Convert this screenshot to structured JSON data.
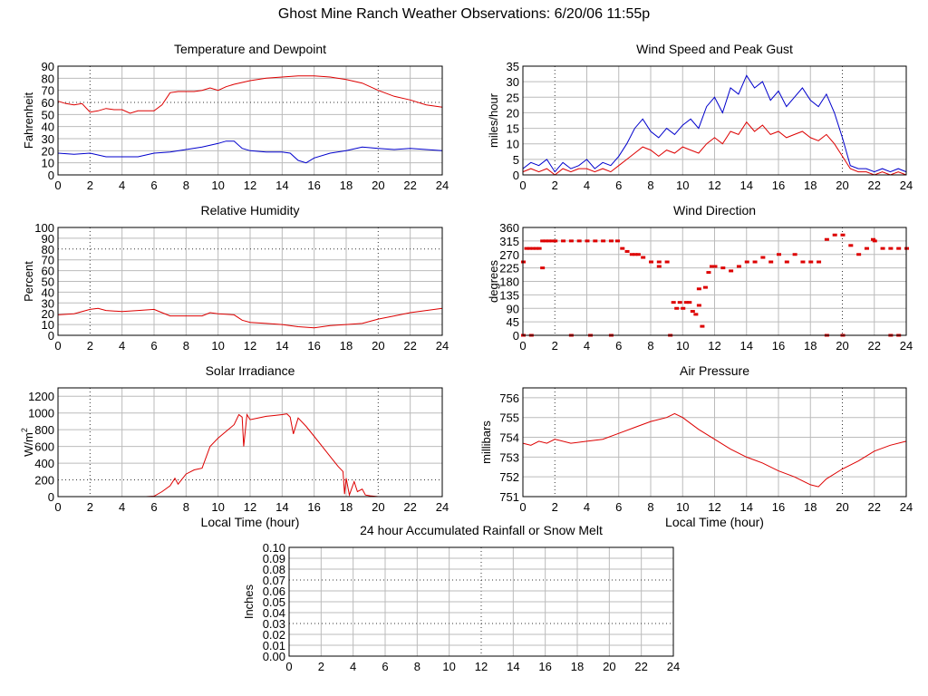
{
  "page": {
    "title": "Ghost Mine Ranch Weather Observations: 6/20/06 11:55p"
  },
  "chart_data": [
    {
      "id": "temp",
      "type": "line",
      "title": "Temperature and Dewpoint",
      "xlabel": "",
      "ylabel": "Fahrenheit",
      "xlim": [
        0,
        24
      ],
      "ylim": [
        0,
        90
      ],
      "xticks": [
        0,
        2,
        4,
        6,
        8,
        10,
        12,
        14,
        16,
        18,
        20,
        22,
        24
      ],
      "yticks": [
        0,
        10,
        20,
        30,
        40,
        50,
        60,
        70,
        80,
        90
      ],
      "grid": true,
      "series": [
        {
          "color": "#dd0000",
          "x": [
            0,
            0.5,
            1,
            1.5,
            2,
            2.5,
            3,
            3.5,
            4,
            4.5,
            5,
            5.5,
            6,
            6.5,
            7,
            7.5,
            8,
            8.5,
            9,
            9.5,
            10,
            10.5,
            11,
            12,
            13,
            14,
            15,
            16,
            17,
            18,
            19,
            20,
            21,
            22,
            23,
            24
          ],
          "y": [
            61,
            59,
            58,
            59,
            52,
            53,
            55,
            54,
            54,
            51,
            53,
            53,
            53,
            58,
            68,
            69,
            69,
            69,
            70,
            72,
            70,
            73,
            75,
            78,
            80,
            81,
            82,
            82,
            81,
            79,
            76,
            70,
            65,
            62,
            58,
            56
          ]
        },
        {
          "color": "#0000cc",
          "x": [
            0,
            1,
            2,
            3,
            4,
            5,
            6,
            7,
            8,
            9,
            10,
            10.5,
            11,
            11.5,
            12,
            13,
            14,
            14.5,
            15,
            15.5,
            16,
            17,
            18,
            19,
            20,
            21,
            22,
            23,
            24
          ],
          "y": [
            18,
            17,
            18,
            15,
            15,
            15,
            18,
            19,
            21,
            23,
            26,
            28,
            28,
            22,
            20,
            19,
            19,
            18,
            12,
            10,
            14,
            18,
            20,
            23,
            22,
            21,
            22,
            21,
            20
          ]
        }
      ]
    },
    {
      "id": "wind",
      "type": "line",
      "title": "Wind Speed and Peak Gust",
      "xlabel": "",
      "ylabel": "miles/hour",
      "xlim": [
        0,
        24
      ],
      "ylim": [
        0,
        35
      ],
      "xticks": [
        0,
        2,
        4,
        6,
        8,
        10,
        12,
        14,
        16,
        18,
        20,
        22,
        24
      ],
      "yticks": [
        0,
        5,
        10,
        15,
        20,
        25,
        30,
        35
      ],
      "grid": true,
      "series": [
        {
          "color": "#0000cc",
          "x": [
            0,
            0.5,
            1,
            1.5,
            2,
            2.5,
            3,
            3.5,
            4,
            4.5,
            5,
            5.5,
            6,
            6.5,
            7,
            7.5,
            8,
            8.5,
            9,
            9.5,
            10,
            10.5,
            11,
            11.5,
            12,
            12.5,
            13,
            13.5,
            14,
            14.5,
            15,
            15.5,
            16,
            16.5,
            17,
            17.5,
            18,
            18.5,
            19,
            19.5,
            20,
            20.5,
            21,
            21.5,
            22,
            22.5,
            23,
            23.5,
            24
          ],
          "y": [
            2,
            4,
            3,
            5,
            1,
            4,
            2,
            3,
            5,
            2,
            4,
            3,
            6,
            10,
            15,
            18,
            14,
            12,
            15,
            13,
            16,
            18,
            15,
            22,
            25,
            20,
            28,
            26,
            32,
            28,
            30,
            24,
            27,
            22,
            25,
            28,
            24,
            22,
            26,
            20,
            12,
            3,
            2,
            2,
            1,
            2,
            1,
            2,
            1
          ]
        },
        {
          "color": "#dd0000",
          "x": [
            0,
            0.5,
            1,
            1.5,
            2,
            2.5,
            3,
            3.5,
            4,
            4.5,
            5,
            5.5,
            6,
            6.5,
            7,
            7.5,
            8,
            8.5,
            9,
            9.5,
            10,
            10.5,
            11,
            11.5,
            12,
            12.5,
            13,
            13.5,
            14,
            14.5,
            15,
            15.5,
            16,
            16.5,
            17,
            17.5,
            18,
            18.5,
            19,
            19.5,
            20,
            20.5,
            21,
            21.5,
            22,
            22.5,
            23,
            23.5,
            24
          ],
          "y": [
            1,
            2,
            1,
            2,
            0,
            2,
            1,
            2,
            2,
            1,
            2,
            1,
            3,
            5,
            7,
            9,
            8,
            6,
            8,
            7,
            9,
            8,
            7,
            10,
            12,
            10,
            14,
            13,
            17,
            14,
            16,
            13,
            14,
            12,
            13,
            14,
            12,
            11,
            13,
            10,
            6,
            2,
            1,
            1,
            0,
            1,
            0,
            1,
            0
          ]
        }
      ]
    },
    {
      "id": "rh",
      "type": "line",
      "title": "Relative Humidity",
      "xlabel": "",
      "ylabel": "Percent",
      "xlim": [
        0,
        24
      ],
      "ylim": [
        0,
        100
      ],
      "xticks": [
        0,
        2,
        4,
        6,
        8,
        10,
        12,
        14,
        16,
        18,
        20,
        22,
        24
      ],
      "yticks": [
        0,
        10,
        20,
        30,
        40,
        50,
        60,
        70,
        80,
        90,
        100
      ],
      "grid": true,
      "series": [
        {
          "color": "#dd0000",
          "x": [
            0,
            1,
            2,
            2.5,
            3,
            4,
            5,
            6,
            6.5,
            7,
            8,
            9,
            9.5,
            10,
            11,
            11.5,
            12,
            13,
            14,
            15,
            16,
            17,
            18,
            19,
            20,
            21,
            22,
            23,
            24
          ],
          "y": [
            19,
            20,
            24,
            25,
            23,
            22,
            23,
            24,
            21,
            18,
            18,
            18,
            21,
            20,
            19,
            14,
            12,
            11,
            10,
            8,
            7,
            9,
            10,
            11,
            15,
            18,
            21,
            23,
            25
          ]
        }
      ]
    },
    {
      "id": "wdir",
      "type": "scatter",
      "title": "Wind Direction",
      "xlabel": "",
      "ylabel": "degrees",
      "xlim": [
        0,
        24
      ],
      "ylim": [
        0,
        360
      ],
      "xticks": [
        0,
        2,
        4,
        6,
        8,
        10,
        12,
        14,
        16,
        18,
        20,
        22,
        24
      ],
      "yticks": [
        0,
        45,
        90,
        135,
        180,
        225,
        270,
        315,
        360
      ],
      "grid": true,
      "series": [
        {
          "color": "#dd0000",
          "x": [
            0,
            0.2,
            0.4,
            0.6,
            0.8,
            1.0,
            1.2,
            1.4,
            1.6,
            1.8,
            2.0,
            2.5,
            3.0,
            3.5,
            4.0,
            4.5,
            5.0,
            5.5,
            5.9,
            6.2,
            6.5,
            6.8,
            7.0,
            7.2,
            7.5,
            8.0,
            8.5,
            9.0,
            9.4,
            9.6,
            9.8,
            10.0,
            10.2,
            10.4,
            10.6,
            10.8,
            11.0,
            11.2,
            11.4,
            11.6,
            11.8,
            12.0,
            12.5,
            13.0,
            13.5,
            14.0,
            14.5,
            15.0,
            15.5,
            16.0,
            16.5,
            17.0,
            17.5,
            18.0,
            18.5,
            19.0,
            19.5,
            20.0,
            20.5,
            21.0,
            21.5,
            22.0,
            22.5,
            23.0,
            23.5,
            24.0,
            0.0,
            0.5,
            3.0,
            4.2,
            5.5,
            9.2,
            19.0,
            20.0,
            23.0,
            23.5,
            1.2,
            11.0,
            8.5,
            21.9
          ],
          "y": [
            245,
            290,
            290,
            290,
            290,
            290,
            315,
            315,
            315,
            315,
            315,
            315,
            315,
            315,
            315,
            315,
            315,
            315,
            315,
            290,
            280,
            270,
            270,
            270,
            260,
            245,
            245,
            245,
            110,
            90,
            110,
            90,
            110,
            110,
            80,
            70,
            155,
            30,
            160,
            210,
            230,
            230,
            225,
            215,
            230,
            245,
            245,
            260,
            245,
            270,
            245,
            270,
            245,
            245,
            245,
            320,
            335,
            335,
            300,
            270,
            290,
            315,
            290,
            290,
            290,
            290,
            0,
            0,
            0,
            0,
            0,
            0,
            0,
            0,
            0,
            0,
            225,
            100,
            230,
            320
          ]
        }
      ]
    },
    {
      "id": "solar",
      "type": "line",
      "title": "Solar Irradiance",
      "xlabel": "Local Time (hour)",
      "ylabel": "W/m",
      "ylabel_sup": "2",
      "xlim": [
        0,
        24
      ],
      "ylim": [
        0,
        1300
      ],
      "xticks": [
        0,
        2,
        4,
        6,
        8,
        10,
        12,
        14,
        16,
        18,
        20,
        22,
        24
      ],
      "yticks": [
        0,
        200,
        400,
        600,
        800,
        1000,
        1200
      ],
      "grid": true,
      "series": [
        {
          "color": "#dd0000",
          "x": [
            0,
            5.5,
            6,
            6.5,
            7,
            7.3,
            7.5,
            8,
            8.5,
            9,
            9.5,
            10,
            10.5,
            11,
            11.3,
            11.5,
            11.6,
            11.8,
            12,
            12.5,
            13,
            13.5,
            14,
            14.3,
            14.5,
            14.7,
            15,
            15.5,
            16,
            16.5,
            17,
            17.5,
            17.8,
            17.9,
            18,
            18.2,
            18.5,
            18.7,
            19,
            19.2,
            19.5,
            20,
            24
          ],
          "y": [
            0,
            0,
            5,
            60,
            130,
            220,
            150,
            270,
            320,
            340,
            600,
            700,
            780,
            860,
            980,
            950,
            600,
            980,
            920,
            940,
            960,
            970,
            980,
            990,
            950,
            750,
            940,
            840,
            720,
            600,
            480,
            360,
            300,
            30,
            220,
            20,
            180,
            60,
            90,
            20,
            10,
            0,
            0
          ]
        }
      ]
    },
    {
      "id": "pressure",
      "type": "line",
      "title": "Air Pressure",
      "xlabel": "Local Time (hour)",
      "ylabel": "millibars",
      "xlim": [
        0,
        24
      ],
      "ylim": [
        751,
        756.5
      ],
      "xticks": [
        0,
        2,
        4,
        6,
        8,
        10,
        12,
        14,
        16,
        18,
        20,
        22,
        24
      ],
      "yticks": [
        751,
        752,
        753,
        754,
        755,
        756
      ],
      "grid": true,
      "series": [
        {
          "color": "#dd0000",
          "x": [
            0,
            0.5,
            1,
            1.5,
            2,
            3,
            4,
            5,
            6,
            7,
            8,
            9,
            9.5,
            10,
            10.5,
            11,
            12,
            13,
            14,
            15,
            16,
            17,
            18,
            18.5,
            19,
            20,
            21,
            22,
            23,
            24
          ],
          "y": [
            753.7,
            753.6,
            753.8,
            753.7,
            753.9,
            753.7,
            753.8,
            753.9,
            754.2,
            754.5,
            754.8,
            755.0,
            755.2,
            755.0,
            754.7,
            754.4,
            753.9,
            753.4,
            753.0,
            752.7,
            752.3,
            752.0,
            751.6,
            751.5,
            751.9,
            752.4,
            752.8,
            753.3,
            753.6,
            753.8
          ]
        }
      ]
    },
    {
      "id": "rain",
      "type": "line",
      "title": "24 hour Accumulated Rainfall or Snow Melt",
      "xlabel": "",
      "ylabel": "Inches",
      "xlim": [
        0,
        24
      ],
      "ylim": [
        0,
        0.1
      ],
      "xticks": [
        0,
        2,
        4,
        6,
        8,
        10,
        12,
        14,
        16,
        18,
        20,
        22,
        24
      ],
      "yticks": [
        0.0,
        0.01,
        0.02,
        0.03,
        0.04,
        0.05,
        0.06,
        0.07,
        0.08,
        0.09,
        0.1
      ],
      "ytick_labels": [
        "0.00",
        "0.01",
        "0.02",
        "0.03",
        "0.04",
        "0.05",
        "0.06",
        "0.07",
        "0.08",
        "0.09",
        "0.10"
      ],
      "grid": true,
      "series": [
        {
          "color": "#dd0000",
          "x": [
            0,
            24
          ],
          "y": [
            0.0,
            0.0
          ]
        }
      ]
    }
  ]
}
